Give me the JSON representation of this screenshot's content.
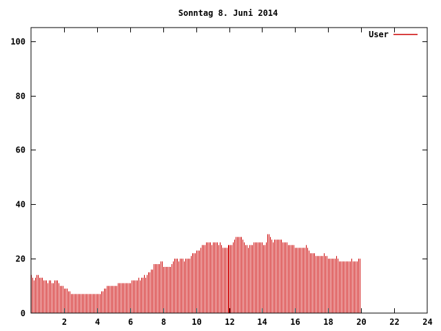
{
  "chart_data": {
    "type": "bar",
    "title": "Sonntag 8. Juni 2014",
    "xlabel": "",
    "ylabel": "",
    "xlim": [
      0,
      24
    ],
    "ylim": [
      0,
      105
    ],
    "x_ticks": [
      2,
      4,
      6,
      8,
      10,
      12,
      14,
      16,
      18,
      20,
      22,
      24
    ],
    "y_ticks": [
      0,
      20,
      40,
      60,
      80,
      100
    ],
    "grid": false,
    "legend_position": "top-right",
    "bar_interval_hours": 0.0833333,
    "series": [
      {
        "name": "User",
        "color": "#cc0000",
        "values": [
          14,
          13,
          12,
          13,
          14,
          14,
          13,
          13,
          13,
          12,
          12,
          12,
          11,
          12,
          12,
          11,
          11,
          12,
          12,
          12,
          11,
          10,
          10,
          10,
          9,
          9,
          9,
          8,
          8,
          7,
          7,
          7,
          7,
          7,
          7,
          7,
          7,
          7,
          7,
          7,
          7,
          7,
          7,
          7,
          7,
          7,
          7,
          7,
          7,
          7,
          7,
          8,
          8,
          9,
          9,
          10,
          10,
          10,
          10,
          10,
          10,
          10,
          10,
          11,
          11,
          11,
          11,
          11,
          11,
          11,
          11,
          11,
          11,
          12,
          12,
          12,
          12,
          12,
          13,
          12,
          13,
          13,
          14,
          13,
          14,
          15,
          15,
          16,
          16,
          18,
          18,
          18,
          18,
          18,
          19,
          19,
          17,
          17,
          17,
          17,
          17,
          17,
          18,
          19,
          20,
          20,
          20,
          19,
          20,
          20,
          20,
          19,
          20,
          20,
          20,
          20,
          21,
          22,
          22,
          22,
          23,
          23,
          23,
          24,
          25,
          25,
          25,
          26,
          26,
          26,
          26,
          25,
          26,
          26,
          26,
          26,
          25,
          26,
          25,
          24,
          24,
          24,
          24,
          25,
          25,
          25,
          25,
          26,
          27,
          28,
          28,
          28,
          28,
          28,
          27,
          26,
          25,
          25,
          24,
          25,
          25,
          25,
          26,
          26,
          26,
          26,
          26,
          26,
          26,
          25,
          25,
          26,
          29,
          29,
          28,
          27,
          26,
          27,
          27,
          27,
          27,
          27,
          27,
          26,
          26,
          26,
          26,
          25,
          25,
          25,
          25,
          25,
          24,
          24,
          24,
          24,
          24,
          24,
          24,
          24,
          25,
          24,
          23,
          22,
          22,
          22,
          22,
          21,
          21,
          21,
          21,
          21,
          21,
          22,
          21,
          21,
          20,
          20,
          20,
          20,
          20,
          20,
          21,
          20,
          19,
          19,
          19,
          19,
          19,
          19,
          19,
          19,
          19,
          20,
          19,
          19,
          19,
          19,
          20,
          20
        ]
      }
    ]
  }
}
